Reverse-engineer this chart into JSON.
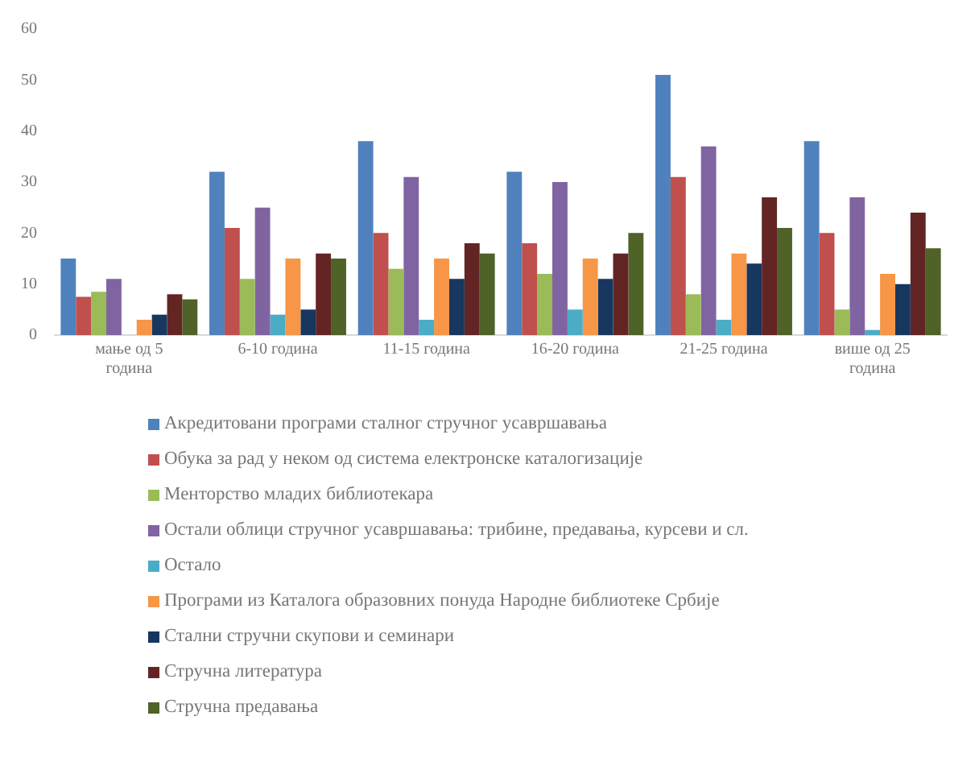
{
  "chart_data": {
    "type": "bar",
    "categories": [
      "мање од 5 година",
      "6-10 година",
      "11-15 година",
      "16-20 година",
      "21-25 година",
      "више од 25 година"
    ],
    "series": [
      {
        "name": "Акредитовани програми сталног стручног усавршавања",
        "color": "#4f81bd",
        "values": [
          15,
          32,
          38,
          32,
          51,
          38
        ]
      },
      {
        "name": "Обука за рад у неком од система електронске каталогизације",
        "color": "#c0504d",
        "values": [
          7.5,
          21,
          20,
          18,
          31,
          20
        ]
      },
      {
        "name": "Менторство младих библиотекара",
        "color": "#9bbb59",
        "values": [
          8.5,
          11,
          13,
          12,
          8,
          5
        ]
      },
      {
        "name": "Остали облици стручног усавршавања: трибине, предавања, курсеви и сл.",
        "color": "#8064a2",
        "values": [
          11,
          25,
          31,
          30,
          37,
          27
        ]
      },
      {
        "name": "Остало",
        "color": "#4bacc6",
        "values": [
          0,
          4,
          3,
          5,
          3,
          1
        ]
      },
      {
        "name": "Програми из Каталога образовних понуда Народне библиотеке Србије",
        "color": "#f79646",
        "values": [
          3,
          15,
          15,
          15,
          16,
          12
        ]
      },
      {
        "name": "Стални стручни скупови и семинари",
        "color": "#17375e",
        "values": [
          4,
          5,
          11,
          11,
          14,
          10
        ]
      },
      {
        "name": "Стручна литература",
        "color": "#632523",
        "values": [
          8,
          16,
          18,
          16,
          27,
          24
        ]
      },
      {
        "name": "Стручна предавања",
        "color": "#4f6228",
        "values": [
          7,
          15,
          16,
          20,
          21,
          17
        ]
      }
    ],
    "ylim": [
      0,
      60
    ],
    "yticks": [
      0,
      10,
      20,
      30,
      40,
      50,
      60
    ],
    "grid": false,
    "legend": "bottom"
  }
}
